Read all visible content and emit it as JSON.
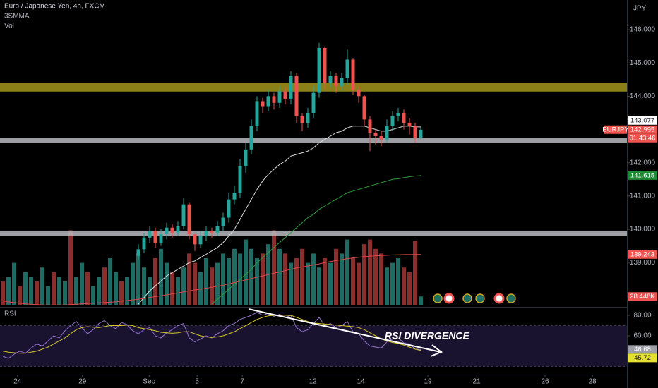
{
  "chart_data": {
    "type": "candlestick",
    "title": "Euro / Japanese Yen, 4h, FXCM",
    "indicators": [
      "3SMMA",
      "Vol"
    ],
    "currency": "JPY",
    "symbol": "EURJPY",
    "countdown": "01:43:46",
    "annotation": "RSI DIVERGENCE",
    "xlim": [
      -0.5,
      110.5
    ],
    "xticks": [
      {
        "value": 2.6,
        "label": "24"
      },
      {
        "value": 14.1,
        "label": "29"
      },
      {
        "value": 25.9,
        "label": "Sep"
      },
      {
        "value": 34.4,
        "label": "5"
      },
      {
        "value": 42.4,
        "label": "7"
      },
      {
        "value": 54.9,
        "label": "12"
      },
      {
        "value": 63.4,
        "label": "14"
      },
      {
        "value": 75.25,
        "label": "19"
      },
      {
        "value": 83.9,
        "label": "21"
      },
      {
        "value": 96,
        "label": "26"
      },
      {
        "value": 104.4,
        "label": "28"
      }
    ],
    "ylim": [
      137.67,
      146.89
    ],
    "yticks": [
      {
        "value": 146,
        "label": "146.000"
      },
      {
        "value": 145,
        "label": "145.000"
      },
      {
        "value": 144,
        "label": "144.000"
      },
      {
        "value": 142,
        "label": "142.000"
      },
      {
        "value": 141,
        "label": "141.000"
      },
      {
        "value": 140,
        "label": "140.000"
      },
      {
        "value": 139,
        "label": "139.000"
      }
    ],
    "candles": {
      "up_color": "#26a69a",
      "down_color": "#ef5350",
      "open": [
        null,
        null,
        null,
        null,
        null,
        null,
        null,
        null,
        null,
        null,
        null,
        null,
        null,
        null,
        null,
        null,
        null,
        null,
        null,
        null,
        null,
        null,
        null,
        null,
        139.2,
        139.4,
        139.75,
        139.95,
        139.6,
        139.85,
        140.05,
        139.9,
        140.1,
        140.75,
        139.85,
        139.55,
        139.8,
        139.95,
        139.9,
        140.1,
        140.35,
        140.9,
        141.1,
        141.9,
        142.4,
        143.1,
        143.85,
        143.7,
        144.0,
        143.8,
        144.15,
        143.9,
        144.6,
        143.4,
        143.2,
        143.5,
        144.1,
        145.45,
        144.4,
        144.6,
        144.3,
        144.55,
        145.1,
        144.2,
        144.0,
        143.3,
        142.9,
        142.8,
        142.7,
        143.1,
        143.4,
        143.5,
        143.2,
        143.1,
        142.75
      ],
      "high": [
        null,
        null,
        null,
        null,
        null,
        null,
        null,
        null,
        null,
        null,
        null,
        null,
        null,
        null,
        null,
        null,
        null,
        null,
        null,
        null,
        null,
        null,
        null,
        null,
        139.55,
        139.9,
        140.1,
        140.05,
        140.0,
        140.2,
        140.15,
        140.25,
        140.95,
        140.8,
        139.9,
        139.95,
        140.1,
        140.05,
        140.25,
        140.5,
        141.1,
        141.3,
        142.1,
        142.6,
        143.3,
        144.0,
        143.95,
        144.2,
        144.1,
        144.3,
        144.25,
        144.75,
        144.7,
        143.5,
        143.65,
        144.3,
        145.6,
        145.5,
        144.75,
        144.7,
        144.7,
        145.4,
        145.15,
        144.3,
        144.05,
        143.4,
        143.0,
        142.95,
        143.3,
        143.55,
        143.65,
        143.6,
        143.35,
        143.2,
        143.1
      ],
      "low": [
        null,
        null,
        null,
        null,
        null,
        null,
        null,
        null,
        null,
        null,
        null,
        null,
        null,
        null,
        null,
        null,
        null,
        null,
        null,
        null,
        null,
        null,
        null,
        null,
        139.1,
        139.3,
        139.6,
        139.45,
        139.5,
        139.7,
        139.75,
        139.8,
        140.0,
        139.7,
        139.35,
        139.45,
        139.65,
        139.75,
        139.8,
        139.95,
        140.2,
        140.75,
        140.95,
        141.7,
        142.25,
        142.95,
        143.5,
        143.55,
        143.6,
        143.65,
        143.75,
        143.75,
        143.2,
        142.95,
        143.05,
        143.35,
        143.95,
        144.2,
        144.25,
        144.1,
        144.15,
        144.35,
        144.05,
        143.8,
        143.1,
        142.35,
        142.55,
        142.5,
        142.6,
        142.95,
        143.25,
        143.0,
        142.85,
        142.6,
        142.7
      ],
      "close": [
        null,
        null,
        null,
        null,
        null,
        null,
        null,
        null,
        null,
        null,
        null,
        null,
        null,
        null,
        null,
        null,
        null,
        null,
        null,
        null,
        null,
        null,
        null,
        null,
        139.4,
        139.75,
        139.95,
        139.6,
        139.85,
        140.05,
        139.9,
        140.1,
        140.75,
        139.85,
        139.55,
        139.8,
        139.95,
        139.9,
        140.1,
        140.35,
        140.9,
        141.1,
        141.9,
        142.4,
        143.1,
        143.85,
        143.7,
        144.0,
        143.8,
        144.15,
        143.9,
        144.6,
        143.4,
        143.2,
        143.5,
        144.1,
        145.45,
        144.4,
        144.6,
        144.3,
        144.55,
        145.1,
        144.2,
        144.0,
        143.3,
        142.9,
        142.8,
        142.7,
        143.1,
        143.4,
        143.5,
        143.2,
        143.1,
        142.75,
        142.995
      ]
    },
    "ma": [
      {
        "color": "#e0e0e0",
        "values": [
          null,
          null,
          null,
          null,
          null,
          null,
          null,
          null,
          null,
          null,
          null,
          null,
          null,
          null,
          null,
          null,
          null,
          null,
          null,
          null,
          null,
          null,
          null,
          null,
          137.75,
          137.95,
          138.15,
          138.3,
          138.45,
          138.6,
          138.7,
          138.8,
          138.9,
          139.0,
          139.05,
          139.15,
          139.25,
          139.35,
          139.45,
          139.6,
          139.8,
          140.0,
          140.3,
          140.6,
          140.9,
          141.2,
          141.45,
          141.65,
          141.8,
          141.95,
          142.05,
          142.2,
          142.25,
          142.3,
          142.35,
          142.45,
          142.6,
          142.7,
          142.8,
          142.9,
          142.95,
          143.05,
          143.1,
          143.1,
          143.1,
          143.05,
          143.0,
          142.95,
          142.95,
          143.0,
          143.05,
          143.1,
          143.1,
          143.08,
          143.077
        ]
      },
      {
        "color": "#2e9e3e",
        "values": [
          null,
          null,
          null,
          null,
          null,
          null,
          null,
          null,
          null,
          null,
          null,
          null,
          null,
          null,
          null,
          null,
          null,
          null,
          null,
          null,
          null,
          null,
          null,
          null,
          null,
          null,
          null,
          null,
          null,
          null,
          null,
          null,
          null,
          null,
          null,
          null,
          null,
          137.75,
          137.9,
          138.05,
          138.2,
          138.35,
          138.5,
          138.65,
          138.8,
          139.0,
          139.15,
          139.3,
          139.45,
          139.6,
          139.75,
          139.9,
          140.05,
          140.2,
          140.35,
          140.45,
          140.6,
          140.7,
          140.8,
          140.9,
          141.0,
          141.1,
          141.15,
          141.2,
          141.25,
          141.3,
          141.35,
          141.4,
          141.45,
          141.5,
          141.52,
          141.55,
          141.58,
          141.6,
          141.615
        ]
      },
      {
        "color": "#e04848",
        "values": [
          137.85,
          137.82,
          137.8,
          137.78,
          137.76,
          137.75,
          137.74,
          137.73,
          137.73,
          137.73,
          137.73,
          137.73,
          137.74,
          137.75,
          137.76,
          137.77,
          137.78,
          137.79,
          137.8,
          137.81,
          137.82,
          137.84,
          137.86,
          137.88,
          137.9,
          137.92,
          137.95,
          137.98,
          138.0,
          138.03,
          138.06,
          138.09,
          138.12,
          138.15,
          138.18,
          138.2,
          138.23,
          138.26,
          138.29,
          138.32,
          138.36,
          138.4,
          138.44,
          138.48,
          138.52,
          138.56,
          138.6,
          138.64,
          138.68,
          138.72,
          138.76,
          138.8,
          138.84,
          138.87,
          138.9,
          138.93,
          138.96,
          139.0,
          139.03,
          139.06,
          139.09,
          139.12,
          139.14,
          139.16,
          139.18,
          139.19,
          139.2,
          139.21,
          139.22,
          139.23,
          139.235,
          139.24,
          139.24,
          139.242,
          139.243
        ]
      }
    ],
    "zones": [
      {
        "from": 144.14,
        "to": 144.41,
        "color": "#a3961c"
      },
      {
        "from": 142.59,
        "to": 142.74,
        "color": "#b8bac0"
      },
      {
        "from": 139.81,
        "to": 139.96,
        "color": "#b8bac0"
      }
    ],
    "price_labels": [
      {
        "value": 142.995,
        "label": "142.995",
        "color": "#ef5350",
        "text_color": "#ffffff"
      },
      {
        "value": 143.077,
        "label": "143.077",
        "color": "#ffffff",
        "text_color": "#131722"
      },
      {
        "value": 141.615,
        "label": "141.615",
        "color": "#1f8a34",
        "text_color": "#ffffff"
      },
      {
        "value": 139.243,
        "label": "139.243",
        "color": "#ef5350",
        "text_color": "#ffffff"
      }
    ],
    "volume": {
      "ylim": [
        0,
        320
      ],
      "values": [
        80,
        96,
        144,
        64,
        112,
        96,
        80,
        128,
        64,
        112,
        96,
        80,
        256,
        96,
        144,
        112,
        64,
        96,
        128,
        160,
        112,
        80,
        96,
        144,
        176,
        128,
        96,
        160,
        192,
        144,
        112,
        96,
        128,
        176,
        144,
        112,
        160,
        128,
        144,
        176,
        160,
        192,
        176,
        224,
        192,
        160,
        176,
        208,
        256,
        192,
        176,
        144,
        160,
        192,
        144,
        176,
        128,
        160,
        144,
        192,
        176,
        224,
        160,
        144,
        208,
        224,
        192,
        176,
        128,
        144,
        160,
        128,
        112,
        220,
        28.448
      ],
      "last_label": {
        "value": 28.448,
        "label": "28.448K",
        "color": "#ef5350"
      }
    },
    "rsi": {
      "title": "RSI",
      "ylim": [
        22.8,
        86.9
      ],
      "yticks": [
        {
          "value": 80,
          "label": "80.00"
        },
        {
          "value": 60,
          "label": "60.00"
        }
      ],
      "band": [
        30,
        70
      ],
      "series": [
        {
          "color": "#9575cd",
          "values": [
            40,
            38,
            42,
            45,
            43,
            48,
            52,
            50,
            55,
            60,
            58,
            65,
            70,
            74,
            68,
            62,
            66,
            72,
            75,
            70,
            67,
            73,
            71,
            65,
            62,
            66,
            68,
            60,
            58,
            63,
            66,
            70,
            72,
            58,
            54,
            57,
            60,
            58,
            62,
            65,
            70,
            72,
            76,
            78,
            80,
            83,
            80,
            82,
            79,
            81,
            78,
            80,
            68,
            64,
            66,
            72,
            78,
            70,
            72,
            68,
            70,
            74,
            64,
            62,
            55,
            50,
            49,
            48,
            54,
            57,
            58,
            53,
            52,
            47,
            46.68
          ]
        },
        {
          "color": "#d4c72a",
          "values": [
            45,
            44,
            43.5,
            43,
            43,
            44,
            45,
            47,
            49,
            52,
            55,
            58,
            62,
            66,
            68,
            69,
            68.5,
            68,
            69,
            70,
            70,
            70,
            70.5,
            70,
            68,
            67,
            66,
            65,
            63.5,
            63,
            62.5,
            63,
            64,
            64,
            62,
            60,
            59,
            58.5,
            59,
            60,
            62,
            64,
            67,
            70,
            73,
            76,
            78,
            79.5,
            80,
            80.5,
            80,
            80,
            78,
            76,
            74,
            72.5,
            72,
            71.5,
            71,
            70.5,
            70,
            69.5,
            69,
            68,
            66,
            63,
            60,
            57,
            55,
            53.5,
            52.5,
            51,
            49,
            47,
            45.72
          ]
        }
      ],
      "labels": [
        {
          "value": 46.68,
          "label": "46.68",
          "color": "#9e9ea6",
          "text_color": "#ffffff"
        },
        {
          "value": 45.72,
          "label": "45.72",
          "color": "#e6e030",
          "text_color": "#131722"
        }
      ]
    }
  }
}
